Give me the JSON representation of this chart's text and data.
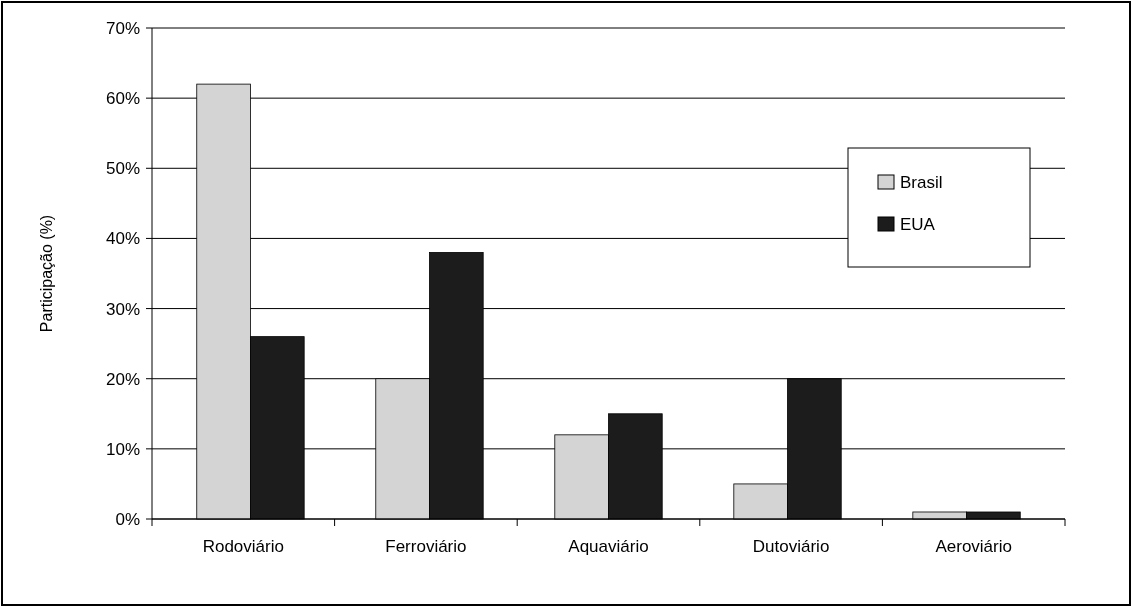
{
  "chart_data": {
    "type": "bar",
    "ylabel": "Participação (%)",
    "categories": [
      "Rodoviário",
      "Ferroviário",
      "Aquaviário",
      "Dutoviário",
      "Aeroviário"
    ],
    "series": [
      {
        "name": "Brasil",
        "color": "#d4d4d4",
        "values": [
          62,
          20,
          12,
          5,
          1
        ]
      },
      {
        "name": "EUA",
        "color": "#1c1c1c",
        "values": [
          26,
          38,
          15,
          20,
          1
        ]
      }
    ],
    "ylim": [
      0,
      70
    ],
    "yticks": [
      {
        "value": 0,
        "label": "0%"
      },
      {
        "value": 10,
        "label": "10%"
      },
      {
        "value": 20,
        "label": "20%"
      },
      {
        "value": 30,
        "label": "30%"
      },
      {
        "value": 40,
        "label": "40%"
      },
      {
        "value": 50,
        "label": "50%"
      },
      {
        "value": 60,
        "label": "60%"
      },
      {
        "value": 70,
        "label": "70%"
      }
    ],
    "grid": "y",
    "legend": "top right"
  }
}
